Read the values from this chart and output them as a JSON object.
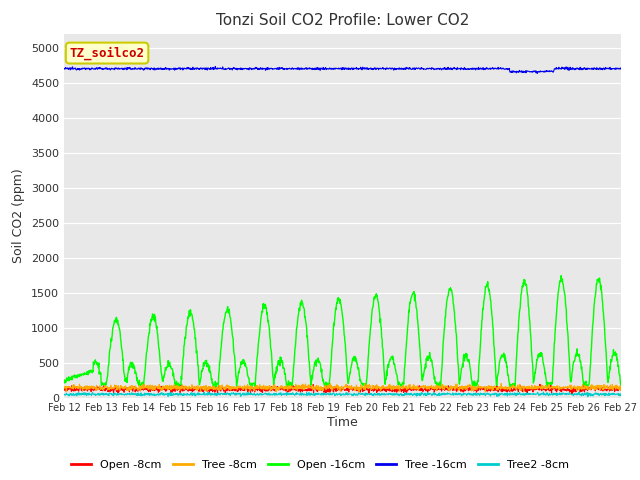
{
  "title": "Tonzi Soil CO2 Profile: Lower CO2",
  "xlabel": "Time",
  "ylabel": "Soil CO2 (ppm)",
  "ylim": [
    0,
    5200
  ],
  "yticks": [
    0,
    500,
    1000,
    1500,
    2000,
    2500,
    3000,
    3500,
    4000,
    4500,
    5000
  ],
  "xtick_labels": [
    "Feb 12",
    "Feb 13",
    "Feb 14",
    "Feb 15",
    "Feb 16",
    "Feb 17",
    "Feb 18",
    "Feb 19",
    "Feb 20",
    "Feb 21",
    "Feb 22",
    "Feb 23",
    "Feb 24",
    "Feb 25",
    "Feb 26",
    "Feb 27"
  ],
  "background_color": "#e8e8e8",
  "fig_background": "#ffffff",
  "legend_label": "TZ_soilco2",
  "legend_label_color": "#cc0000",
  "legend_label_bg": "#ffffcc",
  "legend_label_edge": "#cccc00",
  "tree16_base": 4700,
  "tree16_noise": 8,
  "series": [
    {
      "name": "Open -8cm",
      "color": "#ff0000",
      "lw": 0.8
    },
    {
      "name": "Tree -8cm",
      "color": "#ffaa00",
      "lw": 0.8
    },
    {
      "name": "Open -16cm",
      "color": "#00ff00",
      "lw": 1.0
    },
    {
      "name": "Tree -16cm",
      "color": "#0000ee",
      "lw": 0.8
    },
    {
      "name": "Tree2 -8cm",
      "color": "#00cccc",
      "lw": 0.8
    }
  ]
}
